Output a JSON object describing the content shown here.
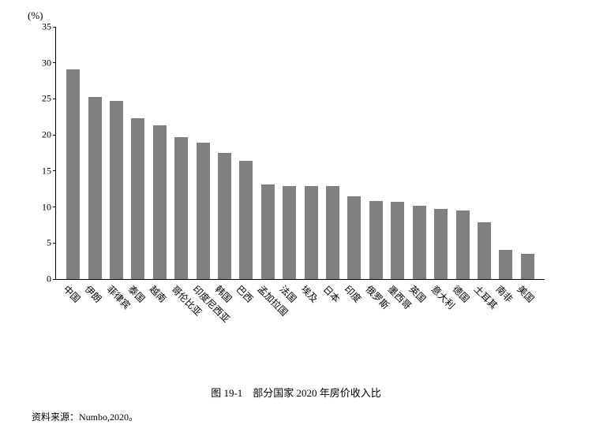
{
  "chart": {
    "type": "bar",
    "y_axis_unit": "(%)",
    "ylim": [
      0,
      35
    ],
    "ytick_step": 5,
    "yticks": [
      0,
      5,
      10,
      15,
      20,
      25,
      30,
      35
    ],
    "bar_color": "#808080",
    "axis_color": "#000000",
    "background_color": "#ffffff",
    "label_fontsize": 12,
    "bar_width_ratio": 0.62,
    "categories": [
      "中国",
      "伊朗",
      "菲律宾",
      "泰国",
      "越南",
      "哥伦比亚",
      "印度尼西亚",
      "韩国",
      "巴西",
      "孟加拉国",
      "法国",
      "埃及",
      "日本",
      "印度",
      "俄罗斯",
      "墨西哥",
      "英国",
      "意大利",
      "德国",
      "土耳其",
      "南非",
      "美国"
    ],
    "values": [
      29.2,
      25.3,
      24.8,
      22.4,
      21.4,
      19.7,
      19.0,
      17.6,
      16.5,
      13.2,
      13.0,
      13.0,
      13.0,
      11.5,
      10.9,
      10.8,
      10.2,
      9.8,
      9.5,
      7.9,
      4.1,
      3.5
    ]
  },
  "caption": "图 19-1　部分国家 2020 年房价收入比",
  "source": "资料来源：Numbo,2020。"
}
